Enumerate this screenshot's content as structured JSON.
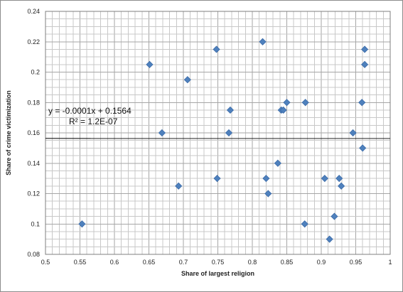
{
  "chart_data": {
    "type": "scatter",
    "title": "",
    "xlabel": "Share of largest religion",
    "ylabel": "Share of crime victimization",
    "xlim": [
      0.5,
      1
    ],
    "ylim": [
      0.08,
      0.24
    ],
    "x_ticks": [
      "0.5",
      "0.55",
      "0.6",
      "0.65",
      "0.7",
      "0.75",
      "0.8",
      "0.85",
      "0.9",
      "0.95",
      "1"
    ],
    "y_ticks": [
      "0.08",
      "0.1",
      "0.12",
      "0.14",
      "0.16",
      "0.18",
      "0.2",
      "0.22",
      "0.24"
    ],
    "grid": true,
    "legend": "none",
    "marker_color": "#4f81bd",
    "marker_shape": "diamond",
    "trendline": {
      "type": "linear",
      "slope": -0.0001,
      "intercept": 0.1564,
      "color": "#000000",
      "equation": "y = -0.0001x + 0.1564",
      "r_squared": "R² = 1.2E-07"
    },
    "points": [
      {
        "x": 0.553,
        "y": 0.1
      },
      {
        "x": 0.651,
        "y": 0.205
      },
      {
        "x": 0.669,
        "y": 0.16
      },
      {
        "x": 0.693,
        "y": 0.125
      },
      {
        "x": 0.706,
        "y": 0.195
      },
      {
        "x": 0.748,
        "y": 0.215
      },
      {
        "x": 0.749,
        "y": 0.13
      },
      {
        "x": 0.766,
        "y": 0.16
      },
      {
        "x": 0.768,
        "y": 0.175
      },
      {
        "x": 0.815,
        "y": 0.22
      },
      {
        "x": 0.82,
        "y": 0.13
      },
      {
        "x": 0.823,
        "y": 0.12
      },
      {
        "x": 0.837,
        "y": 0.14
      },
      {
        "x": 0.842,
        "y": 0.175
      },
      {
        "x": 0.845,
        "y": 0.175
      },
      {
        "x": 0.85,
        "y": 0.18
      },
      {
        "x": 0.876,
        "y": 0.1
      },
      {
        "x": 0.877,
        "y": 0.18
      },
      {
        "x": 0.905,
        "y": 0.13
      },
      {
        "x": 0.912,
        "y": 0.09
      },
      {
        "x": 0.919,
        "y": 0.105
      },
      {
        "x": 0.926,
        "y": 0.13
      },
      {
        "x": 0.929,
        "y": 0.125
      },
      {
        "x": 0.946,
        "y": 0.16
      },
      {
        "x": 0.959,
        "y": 0.18
      },
      {
        "x": 0.96,
        "y": 0.15
      },
      {
        "x": 0.963,
        "y": 0.215
      },
      {
        "x": 0.963,
        "y": 0.205
      }
    ]
  }
}
